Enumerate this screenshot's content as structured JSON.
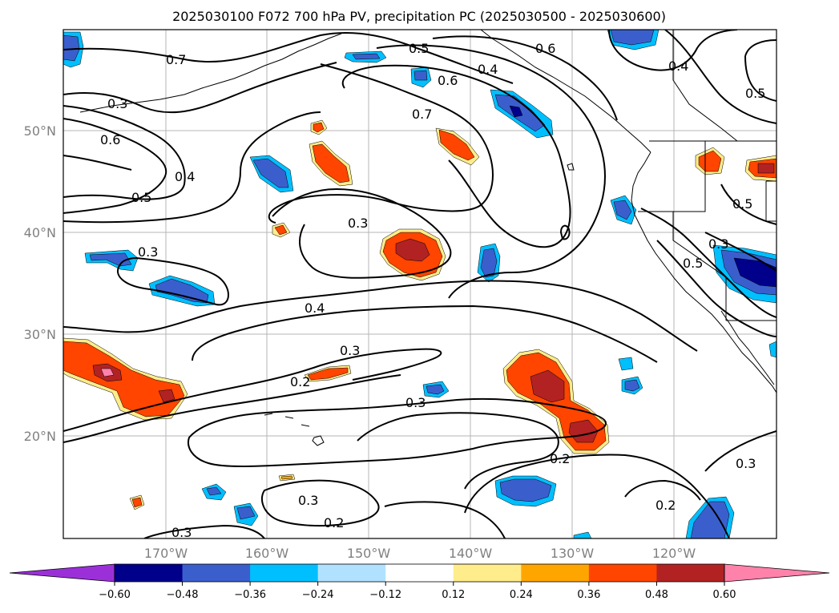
{
  "title": "2025030100 F072 700 hPa PV, precipitation PC (2025030500 - 2025030600)",
  "map": {
    "lat_labels": [
      "50°N",
      "40°N",
      "30°N",
      "20°N"
    ],
    "lon_labels": [
      "170°W",
      "160°W",
      "150°W",
      "140°W",
      "130°W",
      "120°W"
    ],
    "gridlines": true,
    "coastlines": true
  },
  "contour_labels": {
    "pv_07a": "0.7",
    "pv_03a": "0.3",
    "pv_06a": "0.6",
    "pv_04a": "0.4",
    "pv_05a": "0.5",
    "pv_03b": "0.3",
    "pv_03c": "0.3",
    "pv_04b": "0.4",
    "pv_03d": "0.3",
    "pv_02a": "0.2",
    "pv_03e": "0.3",
    "pv_05b": "0.5",
    "pv_06b": "0.6",
    "pv_07b": "0.7",
    "pv_04c": "0.4",
    "pv_06c": "0.6",
    "pv_04d": "0.4",
    "pv_05c": "0.5",
    "pv_05d": "0.5",
    "pv_03f": "0.3",
    "pv_05e": "0.5",
    "pv_02b": "0.2",
    "pv_02c": "0.2",
    "pv_03g": "0.3",
    "pv_03h": "0.3",
    "pv_02d": "0.2",
    "pv_03i": "0.3"
  },
  "colorbar": {
    "ticks": [
      "−0.60",
      "−0.48",
      "−0.36",
      "−0.24",
      "−0.12",
      "0.12",
      "0.24",
      "0.36",
      "0.48",
      "0.60"
    ],
    "colors": {
      "under": "#9b30d9",
      "bins": [
        "#00008b",
        "#3a5fcd",
        "#00bfff",
        "#b0e2ff",
        "#ffffff",
        "#ffec8b",
        "#ffa500",
        "#ff4500",
        "#b22222"
      ],
      "over": "#ff82ab"
    }
  }
}
